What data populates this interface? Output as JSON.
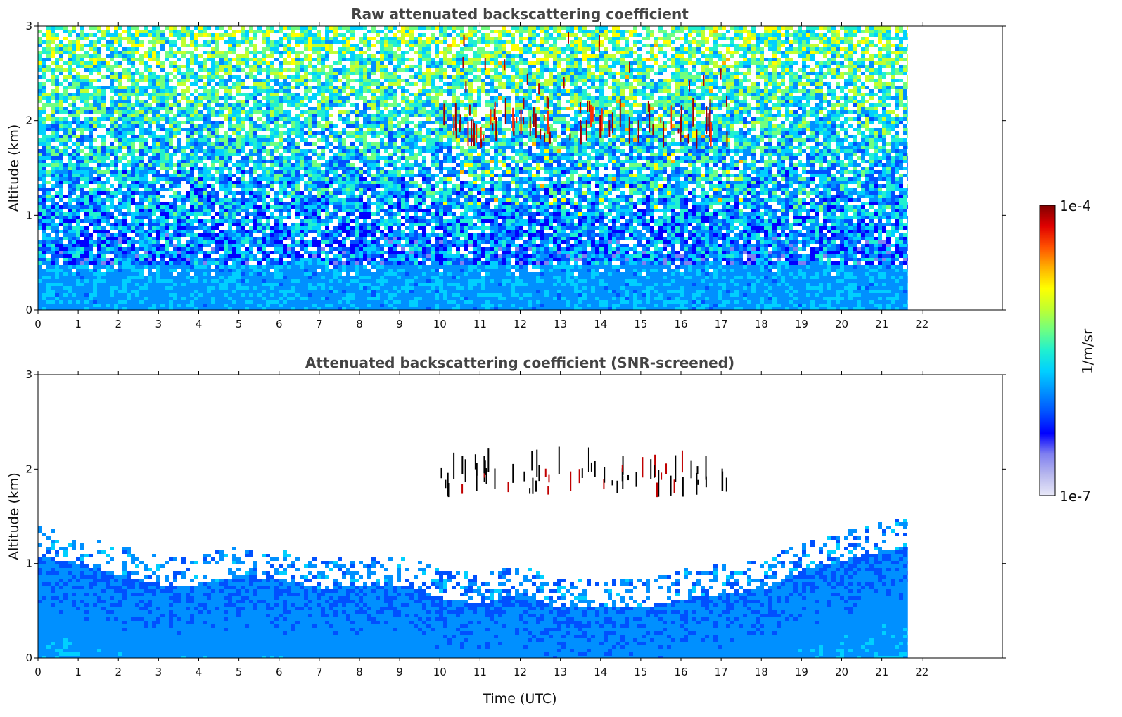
{
  "figure": {
    "colorbar": {
      "label": "1/m/sr",
      "max_label": "1e-4",
      "min_label": "1e-7",
      "vmin": 1e-07,
      "vmax": 0.0001,
      "scale": "log",
      "colormap": "jet",
      "colors": [
        "#e8e8f8",
        "#b8b8ee",
        "#8080f0",
        "#0000ff",
        "#0050ff",
        "#0090ff",
        "#00d0ff",
        "#20f0d0",
        "#70ff80",
        "#c0ff30",
        "#ffff00",
        "#ffb000",
        "#ff5000",
        "#e00000",
        "#800000"
      ]
    }
  },
  "chart_data": [
    {
      "type": "heatmap",
      "title": "Raw attenuated backscattering coefficient",
      "xlabel": "",
      "ylabel": "Altitude (km)",
      "xlim": [
        0,
        24
      ],
      "ylim": [
        0,
        3
      ],
      "data_end_time": 21.65,
      "xticks": [
        0,
        1,
        2,
        3,
        4,
        5,
        6,
        7,
        8,
        9,
        10,
        11,
        12,
        13,
        14,
        15,
        16,
        17,
        18,
        19,
        20,
        21,
        22
      ],
      "yticks": [
        0,
        1,
        2,
        3
      ],
      "features": {
        "boundary_layer_top_km": 0.5,
        "cloud_layer_altitude_km": [
          1.7,
          2.0
        ],
        "cloud_time_range_utc": [
          10,
          17.2
        ]
      }
    },
    {
      "type": "heatmap",
      "title": "Attenuated backscattering coefficient (SNR-screened)",
      "xlabel": "Time (UTC)",
      "ylabel": "Altitude (km)",
      "xlim": [
        0,
        24
      ],
      "ylim": [
        0,
        3
      ],
      "data_end_time": 21.65,
      "xticks": [
        0,
        1,
        2,
        3,
        4,
        5,
        6,
        7,
        8,
        9,
        10,
        11,
        12,
        13,
        14,
        15,
        16,
        17,
        18,
        19,
        20,
        21,
        22
      ],
      "yticks": [
        0,
        1,
        2,
        3
      ],
      "features": {
        "boundary_layer_top_profile": {
          "time": [
            0,
            1,
            2,
            3,
            4,
            5,
            6,
            7,
            8,
            9,
            10,
            11,
            12,
            13,
            14,
            15,
            16,
            17,
            18,
            19,
            20,
            21,
            21.65
          ],
          "altitude_km": [
            1.15,
            1.05,
            0.95,
            0.85,
            0.85,
            0.95,
            0.9,
            0.8,
            0.85,
            0.85,
            0.7,
            0.65,
            0.75,
            0.6,
            0.6,
            0.6,
            0.7,
            0.75,
            0.8,
            1.0,
            1.1,
            1.2,
            1.25
          ]
        },
        "cloud_layer_altitude_km": [
          1.7,
          2.0
        ],
        "cloud_time_range_utc": [
          10,
          17.2
        ]
      }
    }
  ]
}
